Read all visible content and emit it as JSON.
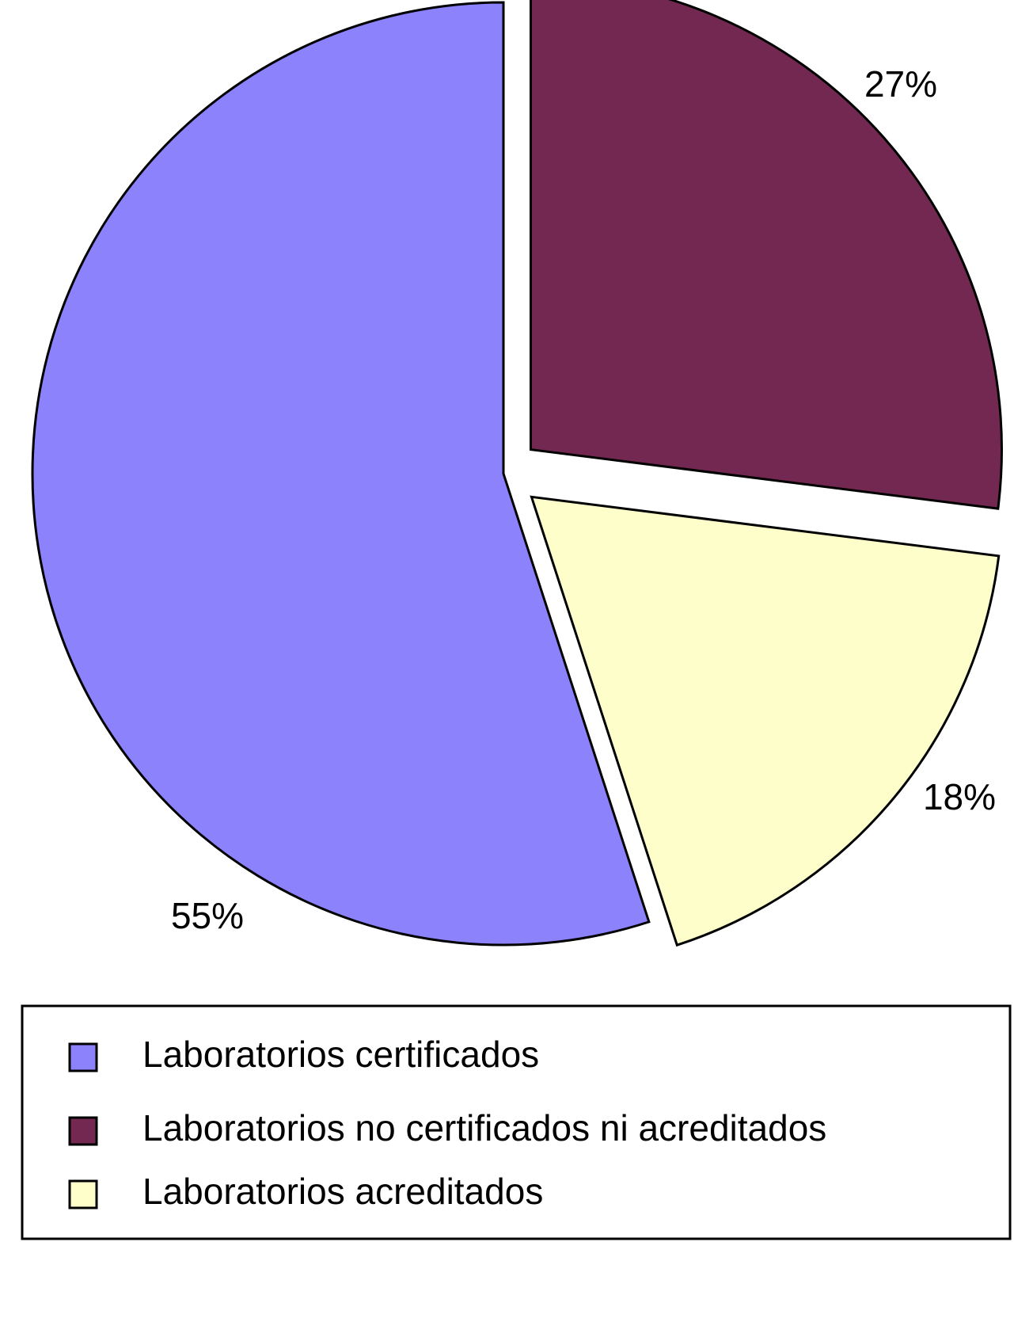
{
  "chart_data": {
    "type": "pie",
    "categories": [
      "Laboratorios certificados",
      "Laboratorios no certificados ni acreditados",
      "Laboratorios acreditados"
    ],
    "values": [
      55,
      27,
      18
    ],
    "value_labels": [
      "55%",
      "27%",
      "18%"
    ],
    "colors": [
      "#8c82fc",
      "#722851",
      "#fefecb"
    ],
    "legend": "bottom"
  }
}
